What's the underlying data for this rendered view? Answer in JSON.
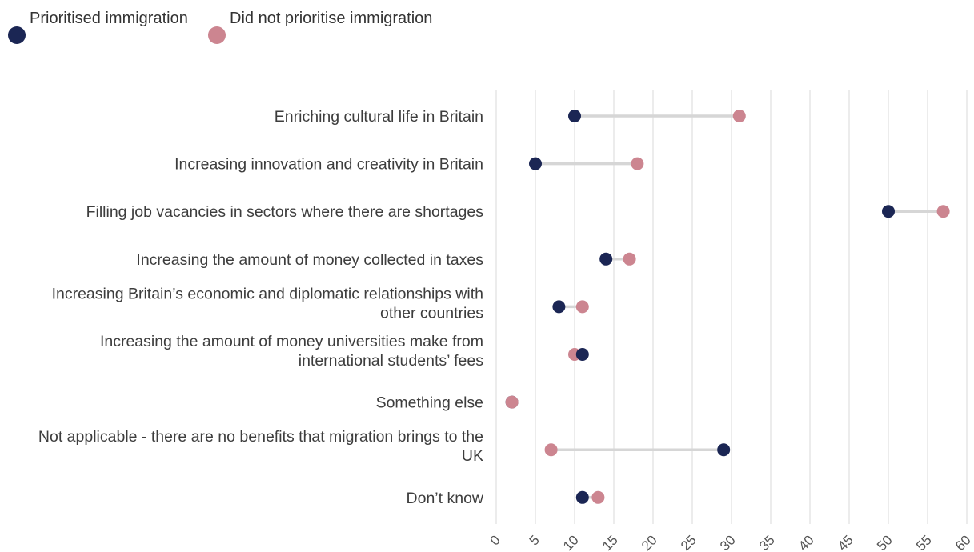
{
  "chart_data": {
    "type": "dumbbell",
    "title": "",
    "xlabel": "",
    "ylabel": "",
    "xlim": [
      0,
      60
    ],
    "x_ticks": [
      0,
      5,
      10,
      15,
      20,
      25,
      30,
      35,
      40,
      45,
      50,
      55,
      60
    ],
    "grid": "vertical",
    "legend": "top-left",
    "series": [
      {
        "name": "Prioritised immigration",
        "color": "#1b2654"
      },
      {
        "name": "Did not prioritise immigration",
        "color": "#cc8590"
      }
    ],
    "categories": [
      {
        "label_lines": [
          "Enriching cultural life in Britain"
        ],
        "values": [
          10,
          31
        ]
      },
      {
        "label_lines": [
          "Increasing innovation and creativity in Britain"
        ],
        "values": [
          5,
          18
        ]
      },
      {
        "label_lines": [
          "Filling job vacancies in sectors where there are shortages"
        ],
        "values": [
          50,
          57
        ]
      },
      {
        "label_lines": [
          "Increasing the amount of money collected in taxes"
        ],
        "values": [
          14,
          17
        ]
      },
      {
        "label_lines": [
          "Increasing Britain’s economic and diplomatic relationships with",
          "other countries"
        ],
        "values": [
          8,
          11
        ]
      },
      {
        "label_lines": [
          "Increasing the amount of money universities make from",
          "international students’ fees"
        ],
        "values": [
          11,
          10
        ]
      },
      {
        "label_lines": [
          "Something else"
        ],
        "values": [
          2,
          2
        ]
      },
      {
        "label_lines": [
          "Not applicable - there are no benefits that migration brings to the",
          "UK"
        ],
        "values": [
          29,
          7
        ]
      },
      {
        "label_lines": [
          "Don’t know"
        ],
        "values": [
          11,
          13
        ]
      }
    ],
    "connector_color": "#d6d6d6",
    "grid_color": "#e6e6e6"
  }
}
